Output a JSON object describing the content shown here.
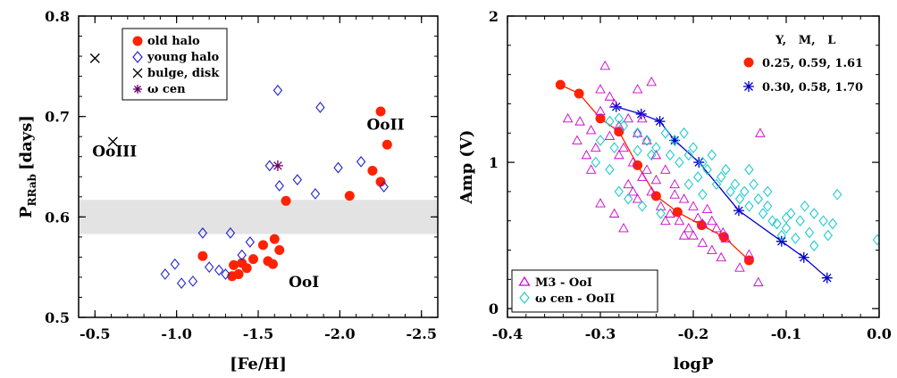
{
  "chart_data": [
    {
      "type": "scatter",
      "xlabel": "[Fe/H]",
      "ylabel": "P",
      "ylabel_sub": "RRab",
      "ylabel_unit": "[days]",
      "xlim": [
        -0.4,
        -2.6
      ],
      "ylim": [
        0.5,
        0.8
      ],
      "xticks": [
        -0.5,
        -1.0,
        -1.5,
        -2.0,
        -2.5
      ],
      "xtick_labels": [
        "-0.5",
        "-1.0",
        "-1.5",
        "-2.0",
        "-2.5"
      ],
      "yticks": [
        0.5,
        0.6,
        0.7,
        0.8
      ],
      "ytick_labels": [
        "0.5",
        "0.6",
        "0.7",
        "0.8"
      ],
      "shaded_band": {
        "y_from": 0.583,
        "y_to": 0.617,
        "color": "#e3e3e3"
      },
      "legend_position": "top-left",
      "annotations": [
        {
          "text": "OoIII",
          "x": -0.62,
          "y": 0.66
        },
        {
          "text": "OoII",
          "x": -2.28,
          "y": 0.687
        },
        {
          "text": "OoI",
          "x": -1.78,
          "y": 0.53
        }
      ],
      "series": [
        {
          "name": "old halo",
          "marker": "filled-circle",
          "color": "#ff2200",
          "points": [
            [
              -1.16,
              0.561
            ],
            [
              -1.34,
              0.541
            ],
            [
              -1.35,
              0.552
            ],
            [
              -1.38,
              0.543
            ],
            [
              -1.4,
              0.554
            ],
            [
              -1.43,
              0.549
            ],
            [
              -1.47,
              0.558
            ],
            [
              -1.53,
              0.572
            ],
            [
              -1.56,
              0.556
            ],
            [
              -1.59,
              0.553
            ],
            [
              -1.6,
              0.578
            ],
            [
              -1.63,
              0.567
            ],
            [
              -1.67,
              0.616
            ],
            [
              -2.06,
              0.621
            ],
            [
              -2.2,
              0.646
            ],
            [
              -2.25,
              0.705
            ],
            [
              -2.25,
              0.635
            ],
            [
              -2.29,
              0.672
            ]
          ]
        },
        {
          "name": "young halo",
          "marker": "open-diamond",
          "color": "#2222cc",
          "points": [
            [
              -0.93,
              0.543
            ],
            [
              -0.99,
              0.553
            ],
            [
              -1.03,
              0.534
            ],
            [
              -1.1,
              0.536
            ],
            [
              -1.16,
              0.584
            ],
            [
              -1.2,
              0.55
            ],
            [
              -1.26,
              0.547
            ],
            [
              -1.3,
              0.543
            ],
            [
              -1.33,
              0.584
            ],
            [
              -1.4,
              0.562
            ],
            [
              -1.45,
              0.575
            ],
            [
              -1.57,
              0.651
            ],
            [
              -1.62,
              0.726
            ],
            [
              -1.63,
              0.631
            ],
            [
              -1.74,
              0.637
            ],
            [
              -1.85,
              0.623
            ],
            [
              -1.88,
              0.709
            ],
            [
              -1.99,
              0.649
            ],
            [
              -2.13,
              0.655
            ],
            [
              -2.27,
              0.63
            ]
          ]
        },
        {
          "name": "bulge, disk",
          "marker": "cross",
          "color": "#000000",
          "points": [
            [
              -0.5,
              0.758
            ],
            [
              -0.61,
              0.675
            ]
          ]
        },
        {
          "name": "ω cen",
          "marker": "asterisk",
          "color": "#660066",
          "points": [
            [
              -1.62,
              0.651
            ]
          ]
        }
      ]
    },
    {
      "type": "scatter",
      "xlabel": "logP",
      "ylabel": "Amp (V)",
      "xlim": [
        -0.4,
        0.0
      ],
      "ylim": [
        -0.06,
        2.0
      ],
      "xticks": [
        -0.4,
        -0.3,
        -0.2,
        -0.1,
        0.0
      ],
      "xtick_labels": [
        "-0.4",
        "-0.3",
        "-0.2",
        "-0.1",
        "0.0"
      ],
      "yticks": [
        0,
        1,
        2
      ],
      "ytick_labels": [
        "0",
        "1",
        "2"
      ],
      "legend_top": {
        "header": "Y,   M,   L",
        "position": "top-right"
      },
      "legend_bottom_position": "bottom-left",
      "series": [
        {
          "name": "0.25, 0.59, 1.61",
          "marker": "filled-circle",
          "color": "#ff2200",
          "line": true,
          "legend": "top",
          "points": [
            [
              -0.343,
              1.53
            ],
            [
              -0.323,
              1.47
            ],
            [
              -0.3,
              1.3
            ],
            [
              -0.28,
              1.21
            ],
            [
              -0.26,
              0.98
            ],
            [
              -0.24,
              0.77
            ],
            [
              -0.217,
              0.66
            ],
            [
              -0.191,
              0.57
            ],
            [
              -0.167,
              0.49
            ],
            [
              -0.14,
              0.33
            ]
          ]
        },
        {
          "name": "0.30, 0.58, 1.70",
          "marker": "asterisk",
          "color": "#0000cc",
          "line": true,
          "legend": "top",
          "points": [
            [
              -0.283,
              1.38
            ],
            [
              -0.256,
              1.33
            ],
            [
              -0.236,
              1.28
            ],
            [
              -0.22,
              1.15
            ],
            [
              -0.194,
              1.0
            ],
            [
              -0.151,
              0.67
            ],
            [
              -0.105,
              0.46
            ],
            [
              -0.081,
              0.35
            ],
            [
              -0.056,
              0.21
            ]
          ]
        },
        {
          "name": "M3 - OoI",
          "marker": "open-triangle",
          "color": "#cc00cc",
          "legend": "bottom",
          "points": [
            [
              -0.335,
              1.3
            ],
            [
              -0.322,
              1.28
            ],
            [
              -0.31,
              1.22
            ],
            [
              -0.3,
              1.35
            ],
            [
              -0.295,
              1.66
            ],
            [
              -0.29,
              1.18
            ],
            [
              -0.285,
              1.4
            ],
            [
              -0.28,
              1.25
            ],
            [
              -0.275,
              1.1
            ],
            [
              -0.27,
              1.3
            ],
            [
              -0.265,
              1.0
            ],
            [
              -0.26,
              1.2
            ],
            [
              -0.255,
              0.9
            ],
            [
              -0.25,
              1.15
            ],
            [
              -0.245,
              0.8
            ],
            [
              -0.24,
              1.05
            ],
            [
              -0.235,
              0.7
            ],
            [
              -0.23,
              0.95
            ],
            [
              -0.225,
              0.65
            ],
            [
              -0.22,
              0.85
            ],
            [
              -0.215,
              0.6
            ],
            [
              -0.21,
              0.75
            ],
            [
              -0.205,
              0.55
            ],
            [
              -0.2,
              0.5
            ],
            [
              -0.195,
              0.62
            ],
            [
              -0.19,
              0.45
            ],
            [
              -0.185,
              0.68
            ],
            [
              -0.18,
              0.4
            ],
            [
              -0.175,
              0.55
            ],
            [
              -0.17,
              0.35
            ],
            [
              -0.165,
              0.48
            ],
            [
              -0.15,
              0.28
            ],
            [
              -0.14,
              0.37
            ],
            [
              -0.13,
              0.18
            ],
            [
              -0.128,
              1.2
            ],
            [
              -0.305,
              1.1
            ],
            [
              -0.29,
              1.45
            ],
            [
              -0.31,
              0.95
            ],
            [
              -0.28,
              1.05
            ],
            [
              -0.27,
              0.85
            ],
            [
              -0.26,
              0.75
            ],
            [
              -0.25,
              0.95
            ],
            [
              -0.24,
              0.88
            ],
            [
              -0.23,
              0.6
            ],
            [
              -0.22,
              0.78
            ],
            [
              -0.21,
              0.5
            ],
            [
              -0.2,
              0.7
            ],
            [
              -0.19,
              0.58
            ],
            [
              -0.18,
              0.6
            ],
            [
              -0.168,
              0.52
            ],
            [
              -0.315,
              1.05
            ],
            [
              -0.325,
              1.15
            ],
            [
              -0.3,
              0.72
            ],
            [
              -0.285,
              0.65
            ],
            [
              -0.275,
              0.55
            ],
            [
              -0.265,
              0.8
            ],
            [
              -0.255,
              1.3
            ],
            [
              -0.245,
              1.55
            ],
            [
              -0.26,
              1.5
            ],
            [
              -0.3,
              1.5
            ]
          ]
        },
        {
          "name": "ω cen - OoII",
          "marker": "open-diamond",
          "color": "#22cccc",
          "legend": "bottom",
          "points": [
            [
              -0.305,
              1.0
            ],
            [
              -0.3,
              1.15
            ],
            [
              -0.29,
              0.95
            ],
            [
              -0.285,
              1.1
            ],
            [
              -0.28,
              0.8
            ],
            [
              -0.275,
              1.25
            ],
            [
              -0.27,
              0.75
            ],
            [
              -0.26,
              1.2
            ],
            [
              -0.255,
              0.7
            ],
            [
              -0.25,
              1.15
            ],
            [
              -0.24,
              1.1
            ],
            [
              -0.235,
              0.65
            ],
            [
              -0.23,
              1.2
            ],
            [
              -0.225,
              1.05
            ],
            [
              -0.22,
              1.15
            ],
            [
              -0.215,
              1.0
            ],
            [
              -0.21,
              1.2
            ],
            [
              -0.205,
              1.05
            ],
            [
              -0.2,
              1.1
            ],
            [
              -0.195,
              0.9
            ],
            [
              -0.19,
              1.0
            ],
            [
              -0.185,
              0.95
            ],
            [
              -0.18,
              1.05
            ],
            [
              -0.175,
              0.85
            ],
            [
              -0.17,
              0.9
            ],
            [
              -0.165,
              0.95
            ],
            [
              -0.16,
              0.8
            ],
            [
              -0.155,
              0.85
            ],
            [
              -0.15,
              0.75
            ],
            [
              -0.145,
              0.8
            ],
            [
              -0.14,
              0.7
            ],
            [
              -0.135,
              0.85
            ],
            [
              -0.13,
              0.75
            ],
            [
              -0.125,
              0.65
            ],
            [
              -0.12,
              0.7
            ],
            [
              -0.115,
              0.6
            ],
            [
              -0.11,
              0.58
            ],
            [
              -0.105,
              0.5
            ],
            [
              -0.1,
              0.55
            ],
            [
              -0.095,
              0.65
            ],
            [
              -0.09,
              0.48
            ],
            [
              -0.085,
              0.6
            ],
            [
              -0.08,
              0.7
            ],
            [
              -0.075,
              0.52
            ],
            [
              -0.07,
              0.43
            ],
            [
              -0.06,
              0.6
            ],
            [
              -0.055,
              0.5
            ],
            [
              -0.05,
              0.58
            ],
            [
              -0.045,
              0.78
            ],
            [
              -0.002,
              0.47
            ],
            [
              -0.29,
              1.28
            ],
            [
              -0.28,
              1.3
            ],
            [
              -0.26,
              1.08
            ],
            [
              -0.245,
              1.05
            ],
            [
              -0.205,
              0.85
            ],
            [
              -0.19,
              0.78
            ],
            [
              -0.14,
              0.95
            ],
            [
              -0.1,
              0.62
            ],
            [
              -0.12,
              0.8
            ],
            [
              -0.07,
              0.65
            ]
          ]
        }
      ]
    }
  ]
}
